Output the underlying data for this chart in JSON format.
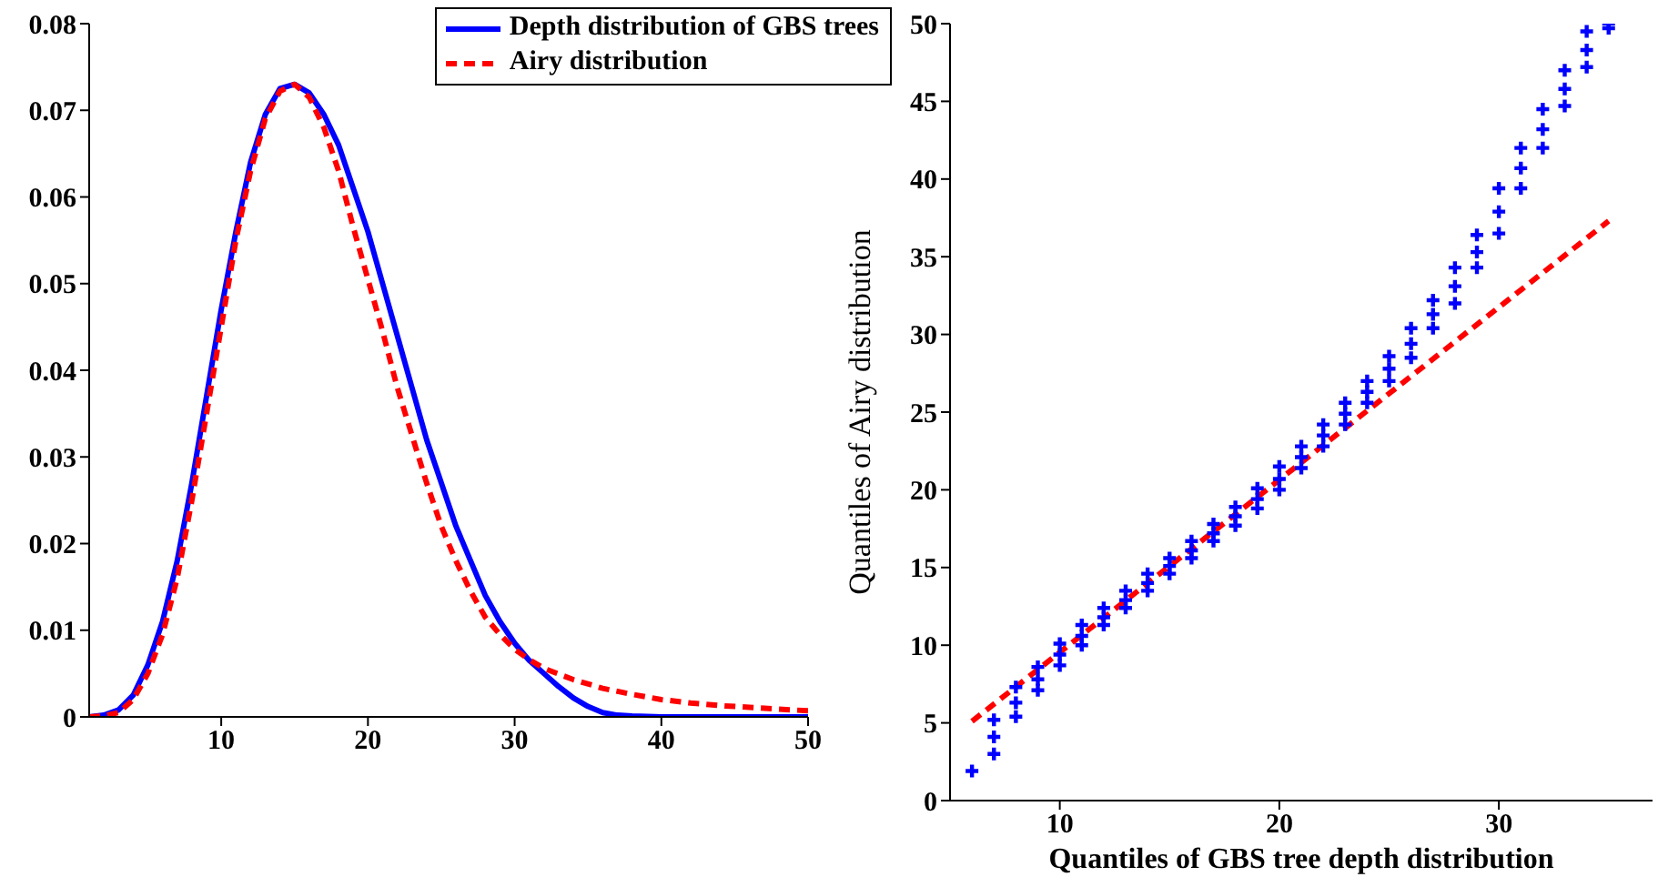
{
  "chart_data": [
    {
      "type": "line",
      "xlim": [
        1,
        50
      ],
      "xticks": [
        10,
        20,
        30,
        40,
        50
      ],
      "ylim": [
        0,
        0.08
      ],
      "yticks": [
        0,
        0.01,
        0.02,
        0.03,
        0.04,
        0.05,
        0.06,
        0.07,
        0.08
      ],
      "legend": "top right",
      "series": [
        {
          "name": "Depth distribution of GBS trees",
          "color": "#0000ff",
          "line_style": "solid",
          "x": [
            1,
            2,
            3,
            4,
            5,
            6,
            7,
            8,
            9,
            10,
            11,
            12,
            13,
            14,
            15,
            16,
            17,
            18,
            19,
            20,
            21,
            22,
            23,
            24,
            25,
            26,
            27,
            28,
            29,
            30,
            31,
            32,
            33,
            34,
            35,
            36,
            37,
            38,
            40,
            50
          ],
          "values": [
            0,
            0.0002,
            0.0008,
            0.0025,
            0.006,
            0.011,
            0.018,
            0.027,
            0.037,
            0.047,
            0.056,
            0.064,
            0.0695,
            0.0725,
            0.073,
            0.072,
            0.0695,
            0.066,
            0.061,
            0.056,
            0.05,
            0.044,
            0.038,
            0.032,
            0.027,
            0.022,
            0.018,
            0.014,
            0.011,
            0.0085,
            0.0065,
            0.005,
            0.0035,
            0.0022,
            0.0012,
            0.0005,
            0.0002,
            0.0001,
            0,
            0
          ]
        },
        {
          "name": "Airy distribution",
          "color": "#ff0000",
          "line_style": "dashed",
          "x": [
            1,
            2,
            3,
            4,
            5,
            6,
            7,
            8,
            9,
            10,
            11,
            12,
            13,
            14,
            15,
            16,
            17,
            18,
            19,
            20,
            21,
            22,
            23,
            24,
            25,
            26,
            27,
            28,
            29,
            30,
            31,
            32,
            34,
            36,
            38,
            40,
            42,
            44,
            46,
            48,
            50
          ],
          "values": [
            0,
            0.0001,
            0.0005,
            0.002,
            0.005,
            0.0095,
            0.016,
            0.025,
            0.035,
            0.045,
            0.055,
            0.063,
            0.069,
            0.0722,
            0.073,
            0.0715,
            0.068,
            0.063,
            0.0565,
            0.0505,
            0.0445,
            0.038,
            0.0325,
            0.027,
            0.022,
            0.018,
            0.0145,
            0.0115,
            0.0095,
            0.0078,
            0.0066,
            0.0056,
            0.0043,
            0.0033,
            0.0026,
            0.002,
            0.0016,
            0.0013,
            0.0011,
            0.0009,
            0.0007
          ]
        }
      ]
    },
    {
      "type": "scatter",
      "xlabel": "Quantiles of GBS tree depth distribution",
      "ylabel": "Quantiles of Airy distribution",
      "xlim": [
        5,
        37
      ],
      "xticks": [
        10,
        20,
        30
      ],
      "ylim": [
        0,
        50
      ],
      "yticks": [
        0,
        5,
        10,
        15,
        20,
        25,
        30,
        35,
        40,
        45,
        50
      ],
      "legend": false,
      "series": [
        {
          "type": "scatter",
          "marker": "cross",
          "color": "#0000ff",
          "x": [
            6,
            7,
            7,
            7,
            8,
            8,
            8,
            9,
            9,
            9,
            10,
            10,
            10,
            11,
            11,
            11,
            12,
            12,
            12,
            13,
            13,
            13,
            14,
            14,
            14,
            15,
            15,
            15,
            16,
            16,
            16,
            17,
            17,
            17,
            18,
            18,
            18,
            19,
            19,
            19,
            20,
            20,
            20,
            21,
            21,
            21,
            22,
            22,
            22,
            23,
            23,
            23,
            24,
            24,
            24,
            25,
            25,
            25,
            26,
            26,
            26,
            27,
            27,
            27,
            28,
            28,
            28,
            29,
            29,
            29,
            30,
            30,
            30,
            31,
            31,
            31,
            32,
            32,
            32,
            33,
            33,
            33,
            34,
            34,
            34,
            35,
            35
          ],
          "values": [
            1.9,
            3,
            4.1,
            5.2,
            5.4,
            6.3,
            7.3,
            7.1,
            7.8,
            8.6,
            8.7,
            9.4,
            10.1,
            10,
            10.6,
            11.3,
            11.3,
            11.8,
            12.4,
            12.4,
            12.9,
            13.5,
            13.5,
            14,
            14.6,
            14.6,
            15.1,
            15.6,
            15.6,
            16.1,
            16.7,
            16.7,
            17.2,
            17.8,
            17.7,
            18.3,
            18.9,
            18.8,
            19.4,
            20.1,
            20,
            20.7,
            21.5,
            21.4,
            22.1,
            22.8,
            22.8,
            23.5,
            24.2,
            24.2,
            24.9,
            25.6,
            25.6,
            26.3,
            27,
            27,
            27.8,
            28.6,
            28.5,
            29.4,
            30.4,
            30.4,
            31.3,
            32.2,
            32,
            33.1,
            34.3,
            34.3,
            35.3,
            36.4,
            36.5,
            37.9,
            39.4,
            39.4,
            40.7,
            42,
            42,
            43.2,
            44.5,
            44.7,
            45.8,
            47,
            47.2,
            48.3,
            49.5,
            49.7,
            50
          ]
        },
        {
          "type": "line",
          "color": "#ff0000",
          "line_style": "dashed",
          "x": [
            6,
            35
          ],
          "values": [
            5.1,
            37.3
          ]
        }
      ]
    }
  ]
}
